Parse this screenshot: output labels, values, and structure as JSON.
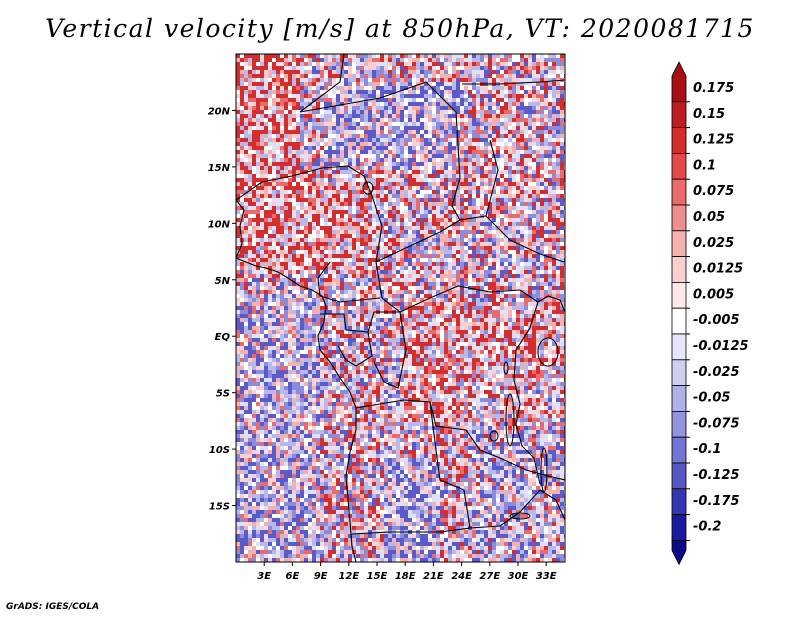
{
  "title": "Vertical velocity [m/s] at 850hPa, VT: 2020081715",
  "credit": "GrADS: IGES/COLA",
  "map": {
    "lon_range": [
      0,
      35
    ],
    "lat_range": [
      -20,
      25
    ],
    "lon_ticks": [
      "3E",
      "6E",
      "9E",
      "12E",
      "15E",
      "18E",
      "21E",
      "24E",
      "27E",
      "30E",
      "33E"
    ],
    "lat_ticks": [
      "20N",
      "15N",
      "10N",
      "5N",
      "EQ",
      "5S",
      "10S",
      "15S"
    ],
    "field": "vertical velocity, red = positive, blue = negative, noisy small-scale pattern"
  },
  "colorbar": {
    "labels": [
      "0.175",
      "0.15",
      "0.125",
      "0.1",
      "0.075",
      "0.05",
      "0.025",
      "0.0125",
      "0.005",
      "-0.005",
      "-0.0125",
      "-0.025",
      "-0.05",
      "-0.075",
      "-0.1",
      "-0.125",
      "-0.175",
      "-0.2"
    ],
    "colors": [
      "#a50f15",
      "#be1e23",
      "#d42d2d",
      "#e24a4a",
      "#ea6b6b",
      "#f08e8e",
      "#f5b0b0",
      "#facfcf",
      "#fde8e8",
      "#ffffff",
      "#e6e6fa",
      "#cfcff2",
      "#b1b1e8",
      "#9393de",
      "#7474d2",
      "#5555c4",
      "#3636b4",
      "#1a1aa0",
      "#0a0a88"
    ]
  }
}
